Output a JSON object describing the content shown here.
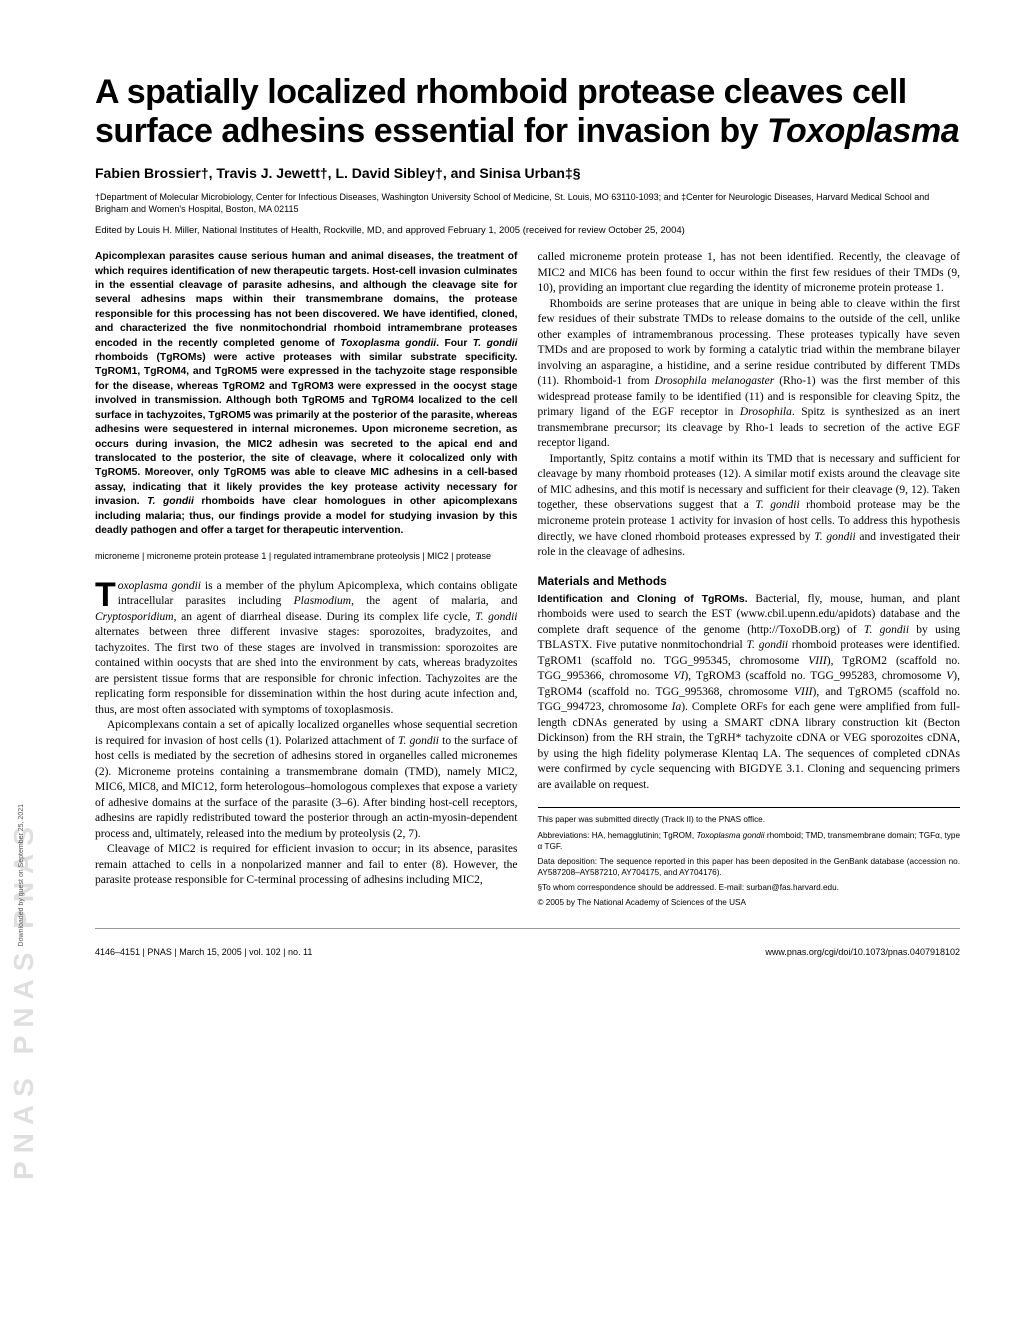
{
  "sidebar_text": "PNAS PNAS PNAS",
  "title_html": "A spatially localized rhomboid protease cleaves cell surface adhesins essential for invasion by <em>Toxoplasma</em>",
  "authors": "Fabien Brossier†, Travis J. Jewett†, L. David Sibley†, and Sinisa Urban‡§",
  "affiliations": "†Department of Molecular Microbiology, Center for Infectious Diseases, Washington University School of Medicine, St. Louis, MO 63110-1093; and ‡Center for Neurologic Diseases, Harvard Medical School and Brigham and Women's Hospital, Boston, MA 02115",
  "edited": "Edited by Louis H. Miller, National Institutes of Health, Rockville, MD, and approved February 1, 2005 (received for review October 25, 2004)",
  "abstract_html": "Apicomplexan parasites cause serious human and animal diseases, the treatment of which requires identification of new therapeutic targets. Host-cell invasion culminates in the essential cleavage of parasite adhesins, and although the cleavage site for several adhesins maps within their transmembrane domains, the protease responsible for this processing has not been discovered. We have identified, cloned, and characterized the five nonmitochondrial rhomboid intramembrane proteases encoded in the recently completed genome of <em>Toxoplasma gondii</em>. Four <em>T. gondii</em> rhomboids (TgROMs) were active proteases with similar substrate specificity. TgROM1, TgROM4, and TgROM5 were expressed in the tachyzoite stage responsible for the disease, whereas TgROM2 and TgROM3 were expressed in the oocyst stage involved in transmission. Although both TgROM5 and TgROM4 localized to the cell surface in tachyzoites, TgROM5 was primarily at the posterior of the parasite, whereas adhesins were sequestered in internal micronemes. Upon microneme secretion, as occurs during invasion, the MIC2 adhesin was secreted to the apical end and translocated to the posterior, the site of cleavage, where it colocalized only with TgROM5. Moreover, only TgROM5 was able to cleave MIC adhesins in a cell-based assay, indicating that it likely provides the key protease activity necessary for invasion. <em>T. gondii</em> rhomboids have clear homologues in other apicomplexans including malaria; thus, our findings provide a model for studying invasion by this deadly pathogen and offer a target for therapeutic intervention.",
  "keywords": "microneme | microneme protein protease 1 | regulated intramembrane proteolysis | MIC2 | protease",
  "left_body_html": "<p class=\"noindent\"><span class=\"dropcap\">T</span><em>oxoplasma gondii</em> is a member of the phylum Apicomplexa, which contains obligate intracellular parasites including <em>Plasmodium</em>, the agent of malaria, and <em>Cryptosporidium</em>, an agent of diarrheal disease. During its complex life cycle, <em>T. gondii</em> alternates between three different invasive stages: sporozoites, bradyzoites, and tachyzoites. The first two of these stages are involved in transmission: sporozoites are contained within oocysts that are shed into the environment by cats, whereas bradyzoites are persistent tissue forms that are responsible for chronic infection. Tachyzoites are the replicating form responsible for dissemination within the host during acute infection and, thus, are most often associated with symptoms of toxoplasmosis.</p><p>Apicomplexans contain a set of apically localized organelles whose sequential secretion is required for invasion of host cells (1). Polarized attachment of <em>T. gondii</em> to the surface of host cells is mediated by the secretion of adhesins stored in organelles called micronemes (2). Microneme proteins containing a transmembrane domain (TMD), namely MIC2, MIC6, MIC8, and MIC12, form heterologous–homologous complexes that expose a variety of adhesive domains at the surface of the parasite (3–6). After binding host-cell receptors, adhesins are rapidly redistributed toward the posterior through an actin-myosin-dependent process and, ultimately, released into the medium by proteolysis (2, 7).</p><p>Cleavage of MIC2 is required for efficient invasion to occur; in its absence, parasites remain attached to cells in a nonpolarized manner and fail to enter (8). However, the parasite protease responsible for C-terminal processing of adhesins including MIC2,</p>",
  "right_body_html": "<p class=\"noindent\">called microneme protein protease 1, has not been identified. Recently, the cleavage of MIC2 and MIC6 has been found to occur within the first few residues of their TMDs (9, 10), providing an important clue regarding the identity of microneme protein protease 1.</p><p>Rhomboids are serine proteases that are unique in being able to cleave within the first few residues of their substrate TMDs to release domains to the outside of the cell, unlike other examples of intramembranous processing. These proteases typically have seven TMDs and are proposed to work by forming a catalytic triad within the membrane bilayer involving an asparagine, a histidine, and a serine residue contributed by different TMDs (11). Rhomboid-1 from <em>Drosophila melanogaster</em> (Rho-1) was the first member of this widespread protease family to be identified (11) and is responsible for cleaving Spitz, the primary ligand of the EGF receptor in <em>Drosophila</em>. Spitz is synthesized as an inert transmembrane precursor; its cleavage by Rho-1 leads to secretion of the active EGF receptor ligand.</p><p>Importantly, Spitz contains a motif within its TMD that is necessary and sufficient for cleavage by many rhomboid proteases (12). A similar motif exists around the cleavage site of MIC adhesins, and this motif is necessary and sufficient for their cleavage (9, 12). Taken together, these observations suggest that a <em>T. gondii</em> rhomboid protease may be the microneme protein protease 1 activity for invasion of host cells. To address this hypothesis directly, we have cloned rhomboid proteases expressed by <em>T. gondii</em> and investigated their role in the cleavage of adhesins.</p>",
  "methods_head": "Materials and Methods",
  "methods_subhead": "Identification and Cloning of TgROMs.",
  "methods_body_html": " Bacterial, fly, mouse, human, and plant rhomboids were used to search the EST (www.cbil.upenn.edu/apidots) database and the complete draft sequence of the genome (http://ToxoDB.org) of <em>T. gondii</em> by using TBLASTX. Five putative nonmitochondrial <em>T. gondii</em> rhomboid proteases were identified. TgROM1 (scaffold no. TGG_995345, chromosome <em>VIII</em>), TgROM2 (scaffold no. TGG_995366, chromosome <em>VI</em>), TgROM3 (scaffold no. TGG_995283, chromosome <em>V</em>), TgROM4 (scaffold no. TGG_995368, chromosome <em>VIII</em>), and TgROM5 (scaffold no. TGG_994723, chromosome <em>Ia</em>). Complete ORFs for each gene were amplified from full-length cDNAs generated by using a SMART cDNA library construction kit (Becton Dickinson) from the RH strain, the TgRH* tachyzoite cDNA or VEG sporozoites cDNA, by using the high fidelity polymerase Klentaq LA. The sequences of completed cDNAs were confirmed by cycle sequencing with BIGDYE 3.1. Cloning and sequencing primers are available on request.",
  "footnotes": {
    "fn1": "This paper was submitted directly (Track II) to the PNAS office.",
    "fn2_html": "Abbreviations: HA, hemagglutinin; TgROM, <em>Toxoplasma gondii</em> rhomboid; TMD, transmembrane domain; TGFα, type α TGF.",
    "fn3": "Data deposition: The sequence reported in this paper has been deposited in the GenBank database (accession no. AY587208–AY587210, AY704175, and AY704176).",
    "fn4": "§To whom correspondence should be addressed. E-mail: surban@fas.harvard.edu.",
    "fn5": "© 2005 by The National Academy of Sciences of the USA"
  },
  "footer": {
    "left": "4146–4151  |  PNAS  |  March 15, 2005  |  vol. 102  |  no. 11",
    "right": "www.pnas.org/cgi/doi/10.1073/pnas.0407918102"
  },
  "download_note": "Downloaded by guest on September 25, 2021"
}
